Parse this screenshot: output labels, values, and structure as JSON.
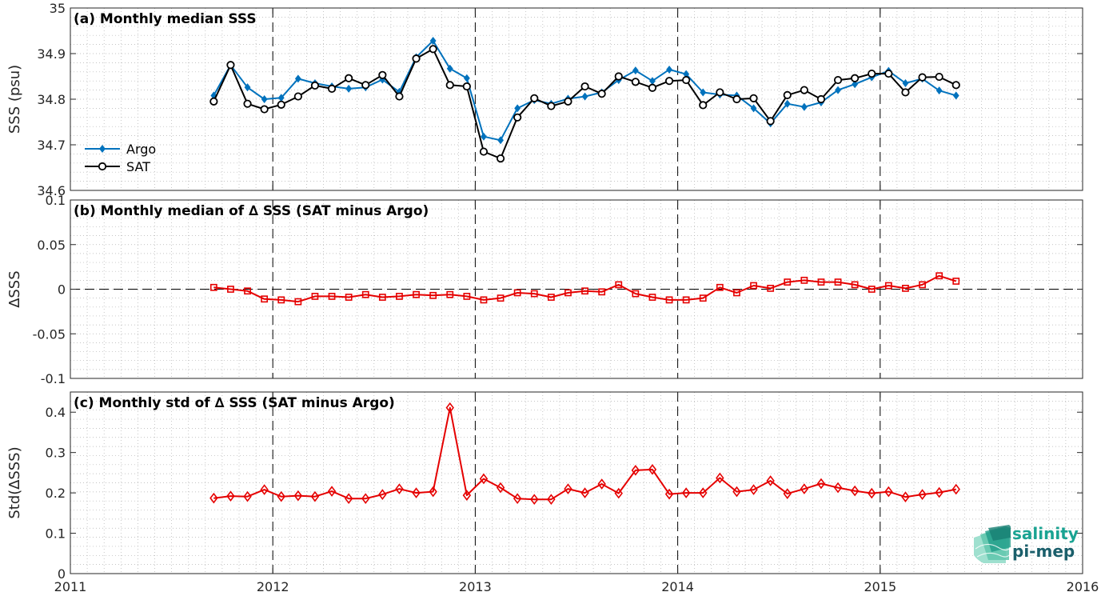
{
  "colors": {
    "argo": "#0072BD",
    "sat": "#000000",
    "delta": "#E50000",
    "axis": "#262626",
    "grid": "#b0b0b0"
  },
  "chart_data": [
    {
      "type": "line",
      "title": "(a) Monthly median SSS",
      "ylabel": "SSS (psu)",
      "xlabel": "",
      "xlim": [
        2011,
        2016
      ],
      "ylim": [
        34.6,
        35
      ],
      "xticks": [
        "2011",
        "2012",
        "2013",
        "2014",
        "2015",
        "2016"
      ],
      "yticks": [
        "34.6",
        "34.7",
        "34.8",
        "34.9",
        "35"
      ],
      "grid": "dotted",
      "legend": "bottom-left",
      "x_start": "2011-09",
      "series": [
        {
          "name": "Argo",
          "marker": "diamond-filled",
          "values": [
            34.808,
            34.875,
            34.826,
            34.8,
            34.803,
            34.845,
            34.835,
            34.828,
            34.823,
            34.826,
            34.843,
            34.816,
            34.892,
            34.928,
            34.867,
            34.846,
            34.718,
            34.71,
            34.78,
            34.798,
            34.79,
            34.801,
            34.806,
            34.815,
            34.842,
            34.863,
            34.84,
            34.865,
            34.855,
            34.815,
            34.81,
            34.808,
            34.78,
            34.747,
            34.79,
            34.783,
            34.793,
            34.82,
            34.833,
            34.848,
            34.862,
            34.835,
            34.845,
            34.819,
            34.808
          ]
        },
        {
          "name": "SAT",
          "marker": "circle-open",
          "values": [
            34.795,
            34.875,
            34.79,
            34.778,
            34.788,
            34.806,
            34.83,
            34.823,
            34.846,
            34.831,
            34.853,
            34.806,
            34.889,
            34.91,
            34.831,
            34.828,
            34.685,
            34.67,
            34.76,
            34.802,
            34.785,
            34.795,
            34.828,
            34.812,
            34.85,
            34.838,
            34.825,
            34.84,
            34.842,
            34.787,
            34.815,
            34.8,
            34.802,
            34.752,
            34.809,
            34.82,
            34.8,
            34.842,
            34.846,
            34.856,
            34.856,
            34.815,
            34.848,
            34.849,
            34.831
          ]
        }
      ]
    },
    {
      "type": "line",
      "title": "(b) Monthly median of ∆ SSS (SAT minus Argo)",
      "ylabel": "∆SSS",
      "xlabel": "",
      "xlim": [
        2011,
        2016
      ],
      "ylim": [
        -0.1,
        0.1
      ],
      "xticks": [
        "2011",
        "2012",
        "2013",
        "2014",
        "2015",
        "2016"
      ],
      "yticks": [
        "-0.1",
        "-0.05",
        "0",
        "0.05",
        "0.1"
      ],
      "grid": "dotted",
      "x_start": "2011-09",
      "series": [
        {
          "name": "",
          "marker": "square-open",
          "values": [
            0.002,
            0.0,
            -0.002,
            -0.011,
            -0.012,
            -0.014,
            -0.008,
            -0.008,
            -0.009,
            -0.006,
            -0.009,
            -0.008,
            -0.006,
            -0.007,
            -0.006,
            -0.008,
            -0.012,
            -0.01,
            -0.004,
            -0.005,
            -0.009,
            -0.004,
            -0.002,
            -0.003,
            0.005,
            -0.005,
            -0.009,
            -0.012,
            -0.012,
            -0.01,
            0.002,
            -0.004,
            0.004,
            0.001,
            0.008,
            0.01,
            0.008,
            0.008,
            0.005,
            0.0,
            0.004,
            0.001,
            0.005,
            0.015,
            0.009
          ]
        }
      ]
    },
    {
      "type": "line",
      "title": "(c) Monthly std of ∆ SSS (SAT minus Argo)",
      "ylabel": "Std(∆SSS)",
      "xlabel": "",
      "xlim": [
        2011,
        2016
      ],
      "ylim": [
        0,
        0.45
      ],
      "xticks": [
        "2011",
        "2012",
        "2013",
        "2014",
        "2015",
        "2016"
      ],
      "yticks": [
        "0",
        "0.1",
        "0.2",
        "0.3",
        "0.4"
      ],
      "grid": "dotted",
      "x_start": "2011-09",
      "series": [
        {
          "name": "",
          "marker": "diamond-open",
          "values": [
            0.187,
            0.192,
            0.191,
            0.208,
            0.191,
            0.193,
            0.191,
            0.204,
            0.186,
            0.186,
            0.196,
            0.21,
            0.2,
            0.203,
            0.411,
            0.194,
            0.235,
            0.213,
            0.186,
            0.184,
            0.184,
            0.21,
            0.2,
            0.222,
            0.199,
            0.256,
            0.258,
            0.197,
            0.2,
            0.2,
            0.237,
            0.203,
            0.208,
            0.23,
            0.198,
            0.21,
            0.223,
            0.213,
            0.205,
            0.199,
            0.203,
            0.19,
            0.196,
            0.201,
            0.209
          ]
        }
      ]
    }
  ],
  "logo": {
    "line1": "salinity",
    "line2": "pi-mep"
  }
}
